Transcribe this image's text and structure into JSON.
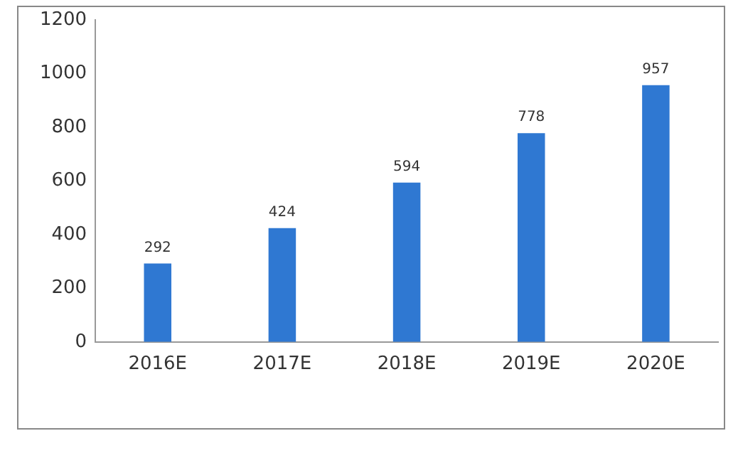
{
  "chart_data": {
    "type": "bar",
    "categories": [
      "2016E",
      "2017E",
      "2018E",
      "2019E",
      "2020E"
    ],
    "values": [
      292,
      424,
      594,
      778,
      957
    ],
    "color": "#2f78d2",
    "ylim": [
      0,
      1200
    ],
    "yticks": [
      0,
      200,
      400,
      600,
      800,
      1000,
      1200
    ],
    "grid": false,
    "legend": false,
    "data_labels": true
  }
}
